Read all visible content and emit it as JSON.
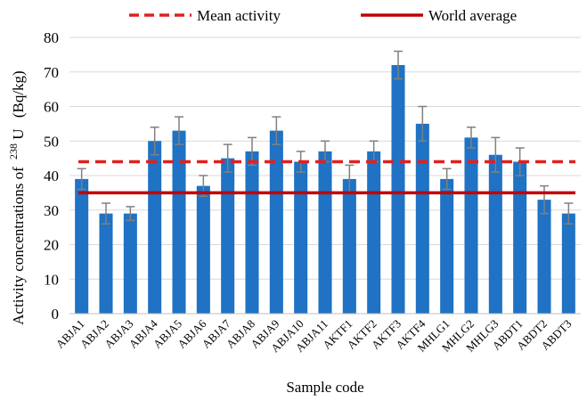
{
  "chart_data": {
    "type": "bar",
    "xlabel": "Sample code",
    "ylabel_prefix": "Activity concentrations of",
    "ylabel_isotope_mass": "238",
    "ylabel_isotope_symbol": "U",
    "ylabel_unit": "(Bq/kg)",
    "ylim": [
      0,
      80
    ],
    "ytick_step": 10,
    "grid": true,
    "legend_placement": "top",
    "categories": [
      "ABJA1",
      "ABJA2",
      "ABJA3",
      "ABJA4",
      "ABJA5",
      "ABJA6",
      "ABJA7",
      "ABJA8",
      "ABJA9",
      "ABJA10",
      "ABJA11",
      "AKTF1",
      "AKTF2",
      "AKTF3",
      "AKTF4",
      "MHLG1",
      "MHLG2",
      "MHLG3",
      "ABDT1",
      "ABDT2",
      "ABDT3"
    ],
    "values": [
      39,
      29,
      29,
      50,
      53,
      37,
      45,
      47,
      53,
      44,
      47,
      39,
      47,
      72,
      55,
      39,
      51,
      46,
      44,
      33,
      29
    ],
    "errors": [
      3,
      3,
      2,
      4,
      4,
      3,
      4,
      4,
      4,
      3,
      3,
      4,
      3,
      4,
      5,
      3,
      3,
      5,
      4,
      4,
      3
    ],
    "bar_color": "#1f72c4",
    "error_color": "#808080",
    "reference_lines": [
      {
        "name": "Mean activity",
        "value": 44,
        "color": "#e02020",
        "style": "dashed"
      },
      {
        "name": "World average",
        "value": 35,
        "color": "#c00000",
        "style": "solid"
      }
    ]
  }
}
